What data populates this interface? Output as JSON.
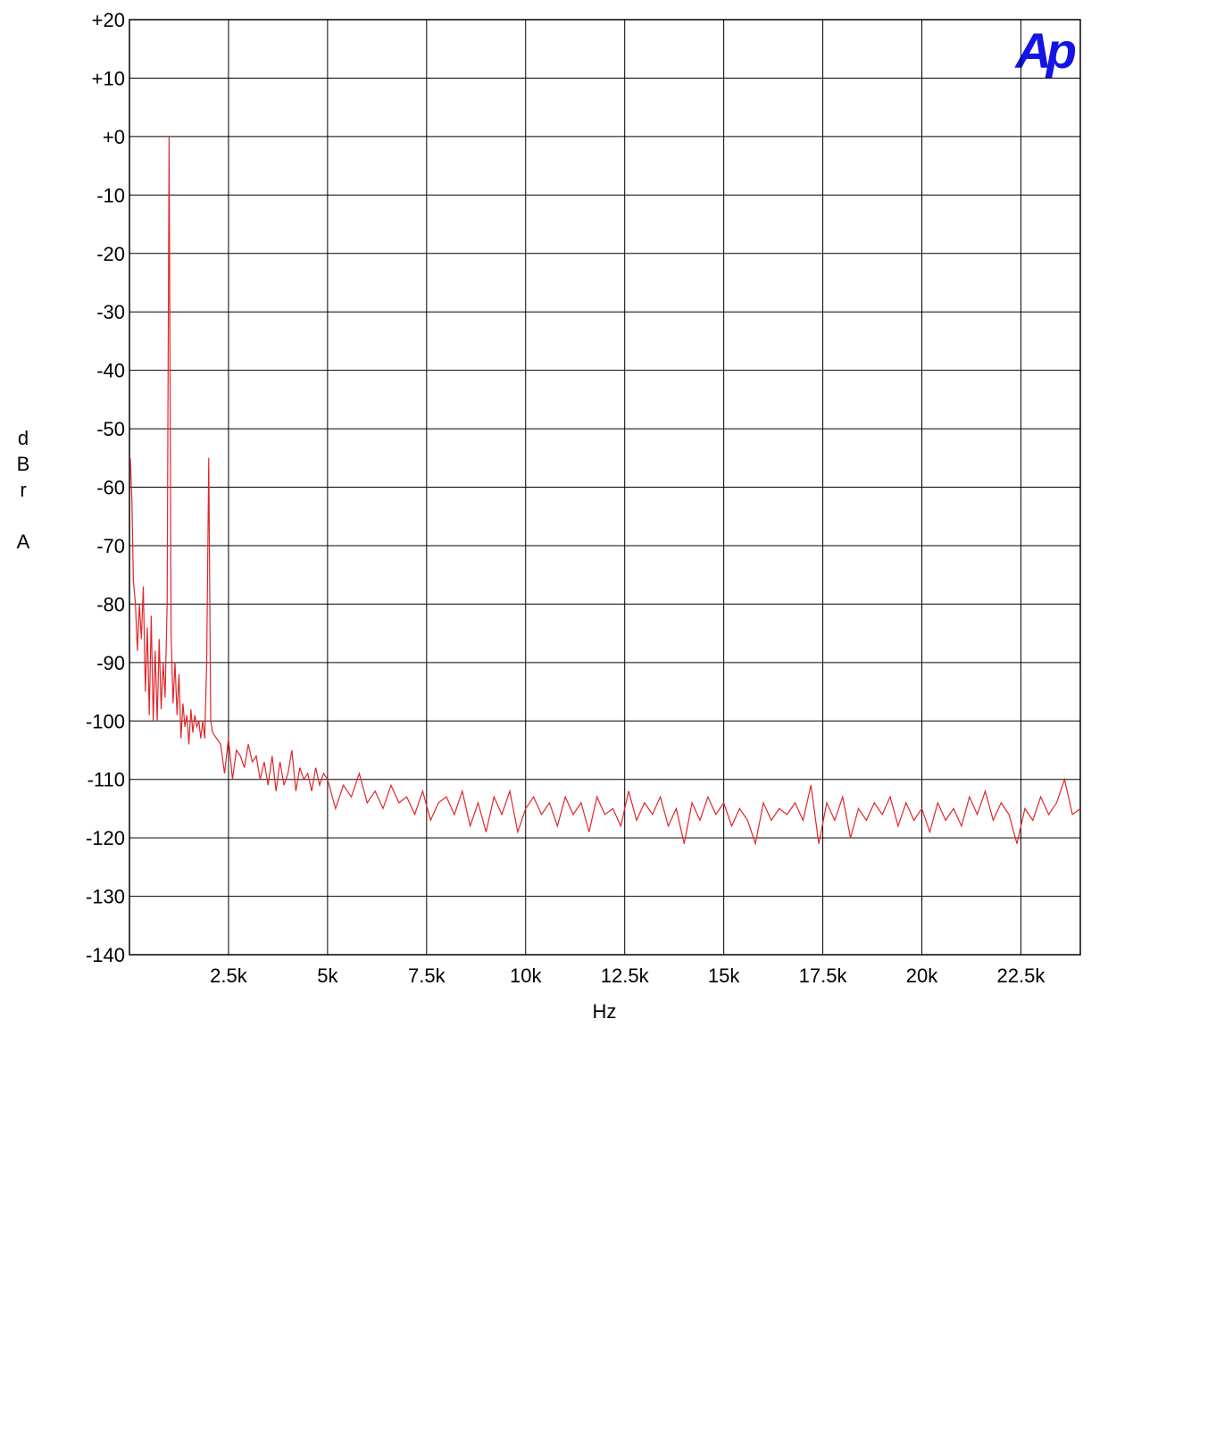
{
  "chart_data": {
    "type": "line",
    "xlabel": "Hz",
    "ylabel": "dBr A",
    "logo": "Ap",
    "xlim": [
      0,
      24000
    ],
    "ylim": [
      -140,
      20
    ],
    "grid": true,
    "xticks": [
      {
        "value": 2500,
        "label": "2.5k"
      },
      {
        "value": 5000,
        "label": "5k"
      },
      {
        "value": 7500,
        "label": "7.5k"
      },
      {
        "value": 10000,
        "label": "10k"
      },
      {
        "value": 12500,
        "label": "12.5k"
      },
      {
        "value": 15000,
        "label": "15k"
      },
      {
        "value": 17500,
        "label": "17.5k"
      },
      {
        "value": 20000,
        "label": "20k"
      },
      {
        "value": 22500,
        "label": "22.5k"
      }
    ],
    "yticks": [
      {
        "value": 20,
        "label": "+20"
      },
      {
        "value": 10,
        "label": "+10"
      },
      {
        "value": 0,
        "label": "+0"
      },
      -10,
      -20,
      -30,
      -40,
      -50,
      -60,
      -70,
      -80,
      -90,
      -100,
      -110,
      -120,
      -130,
      -140
    ],
    "x": [
      20,
      60,
      100,
      150,
      200,
      250,
      300,
      350,
      400,
      450,
      500,
      550,
      600,
      650,
      700,
      750,
      800,
      850,
      900,
      950,
      1000,
      1050,
      1100,
      1150,
      1200,
      1250,
      1300,
      1350,
      1400,
      1450,
      1500,
      1550,
      1600,
      1650,
      1700,
      1750,
      1800,
      1850,
      1900,
      1950,
      2000,
      2050,
      2100,
      2200,
      2300,
      2400,
      2500,
      2600,
      2700,
      2800,
      2900,
      3000,
      3100,
      3200,
      3300,
      3400,
      3500,
      3600,
      3700,
      3800,
      3900,
      4000,
      4100,
      4200,
      4300,
      4400,
      4500,
      4600,
      4700,
      4800,
      4900,
      5000,
      5200,
      5400,
      5600,
      5800,
      6000,
      6200,
      6400,
      6600,
      6800,
      7000,
      7200,
      7400,
      7600,
      7800,
      8000,
      8200,
      8400,
      8600,
      8800,
      9000,
      9200,
      9400,
      9600,
      9800,
      10000,
      10200,
      10400,
      10600,
      10800,
      11000,
      11200,
      11400,
      11600,
      11800,
      12000,
      12200,
      12400,
      12600,
      12800,
      13000,
      13200,
      13400,
      13600,
      13800,
      14000,
      14200,
      14400,
      14600,
      14800,
      15000,
      15200,
      15400,
      15600,
      15800,
      16000,
      16200,
      16400,
      16600,
      16800,
      17000,
      17200,
      17400,
      17600,
      17800,
      18000,
      18200,
      18400,
      18600,
      18800,
      19000,
      19200,
      19400,
      19600,
      19800,
      20000,
      20200,
      20400,
      20600,
      20800,
      21000,
      21200,
      21400,
      21600,
      21800,
      22000,
      22200,
      22400,
      22600,
      22800,
      23000,
      23200,
      23400,
      23600,
      23800,
      24000
    ],
    "series": [
      {
        "color": "#e0262b",
        "values": [
          -55,
          -62,
          -76,
          -80,
          -88,
          -80,
          -86,
          -77,
          -95,
          -84,
          -99,
          -82,
          -100,
          -88,
          -100,
          -86,
          -98,
          -90,
          -96,
          -80,
          0,
          -85,
          -97,
          -90,
          -99,
          -92,
          -103,
          -97,
          -101,
          -99,
          -104,
          -98,
          -102,
          -99,
          -101,
          -100,
          -103,
          -100,
          -103,
          -90,
          -55,
          -100,
          -102,
          -103,
          -104,
          -109,
          -103,
          -110,
          -105,
          -106,
          -108,
          -104,
          -107,
          -106,
          -110,
          -107,
          -111,
          -106,
          -112,
          -107,
          -111,
          -109,
          -105,
          -112,
          -108,
          -110,
          -109,
          -112,
          -108,
          -111,
          -109,
          -110,
          -115,
          -111,
          -113,
          -109,
          -114,
          -112,
          -115,
          -111,
          -114,
          -113,
          -116,
          -112,
          -117,
          -114,
          -113,
          -116,
          -112,
          -118,
          -114,
          -119,
          -113,
          -116,
          -112,
          -119,
          -115,
          -113,
          -116,
          -114,
          -118,
          -113,
          -116,
          -114,
          -119,
          -113,
          -116,
          -115,
          -118,
          -112,
          -117,
          -114,
          -116,
          -113,
          -118,
          -115,
          -121,
          -114,
          -117,
          -113,
          -116,
          -114,
          -118,
          -115,
          -117,
          -121,
          -114,
          -117,
          -115,
          -116,
          -114,
          -117,
          -111,
          -121,
          -114,
          -117,
          -113,
          -120,
          -115,
          -117,
          -114,
          -116,
          -113,
          -118,
          -114,
          -117,
          -115,
          -119,
          -114,
          -117,
          -115,
          -118,
          -113,
          -116,
          -112,
          -117,
          -114,
          -116,
          -121,
          -115,
          -117,
          -113,
          -116,
          -114,
          -110,
          -116,
          -115
        ]
      }
    ]
  }
}
